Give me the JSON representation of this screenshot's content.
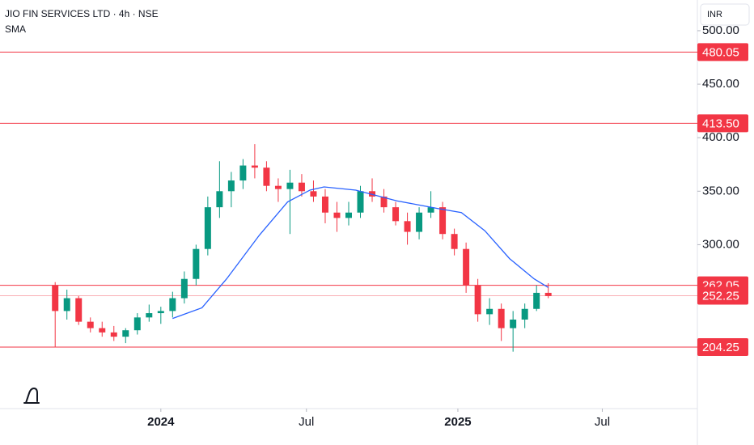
{
  "chart_data": {
    "type": "candlestick",
    "title": "JIO FIN SERVICES LTD · 4h · NSE",
    "currency": "INR",
    "x": [
      0,
      1,
      2,
      3,
      4,
      5,
      6,
      7,
      8,
      9,
      10,
      11,
      12,
      13,
      14,
      15,
      16,
      17,
      18,
      19,
      20,
      21,
      22,
      23,
      24,
      25,
      26,
      27,
      28,
      29,
      30,
      31,
      32,
      33,
      34,
      35,
      36,
      37,
      38,
      39,
      40,
      41,
      42
    ],
    "open": [
      262,
      238,
      250,
      228,
      222,
      218,
      214,
      220,
      232,
      236,
      238,
      250,
      268,
      296,
      335,
      350,
      360,
      374,
      372,
      355,
      352,
      358,
      350,
      345,
      330,
      325,
      330,
      350,
      345,
      335,
      322,
      312,
      330,
      335,
      310,
      296,
      262,
      235,
      240,
      222,
      230,
      240,
      255
    ],
    "high": [
      265,
      258,
      252,
      232,
      228,
      224,
      222,
      236,
      244,
      242,
      256,
      275,
      300,
      345,
      378,
      368,
      380,
      394,
      378,
      362,
      370,
      366,
      360,
      352,
      340,
      340,
      355,
      362,
      352,
      340,
      330,
      335,
      350,
      340,
      315,
      302,
      268,
      250,
      245,
      238,
      245,
      262,
      264
    ],
    "low": [
      204,
      230,
      225,
      218,
      214,
      210,
      208,
      216,
      228,
      226,
      232,
      245,
      262,
      290,
      325,
      335,
      352,
      362,
      350,
      340,
      310,
      345,
      340,
      320,
      312,
      318,
      325,
      340,
      330,
      318,
      300,
      305,
      325,
      305,
      290,
      255,
      228,
      225,
      210,
      200,
      222,
      238,
      250
    ],
    "close": [
      238,
      250,
      228,
      222,
      218,
      214,
      220,
      232,
      236,
      238,
      250,
      268,
      296,
      335,
      350,
      360,
      374,
      372,
      355,
      352,
      358,
      350,
      345,
      330,
      325,
      330,
      350,
      345,
      335,
      322,
      312,
      330,
      335,
      310,
      296,
      262,
      235,
      240,
      222,
      230,
      240,
      255,
      252
    ],
    "up_color": "#089981",
    "down_color": "#f23645",
    "sma": {
      "name": "SMA",
      "color": "#2962ff",
      "x": [
        10,
        12.5,
        14.6,
        17.4,
        19.8,
        21.7,
        22.9,
        25.6,
        29.1,
        32.5,
        34.6,
        36.6,
        38.7,
        40.8,
        42
      ],
      "values": [
        231,
        241,
        268,
        309,
        340,
        351,
        354,
        351,
        341,
        334,
        330,
        313,
        287,
        268,
        260
      ]
    },
    "levels": [
      480.05,
      {
        "value": 413.5,
        "label": "413.50"
      },
      262.05,
      252.25,
      204.25
    ],
    "level_color": "#f23645",
    "xlim": [
      -4.7,
      54.7
    ],
    "xticks": [
      {
        "value": 9,
        "label": "2024"
      },
      {
        "value": 21.4,
        "label": "Jul"
      },
      {
        "value": 34.3,
        "label": "2025"
      },
      {
        "value": 46.6,
        "label": "Jul"
      }
    ],
    "ylim": [
      146.8,
      528.7
    ],
    "yticks": [
      {
        "value": 300,
        "label": "300.00"
      },
      {
        "value": 350,
        "label": "350.00"
      },
      {
        "value": 400,
        "label": "400.00"
      },
      {
        "value": 450,
        "label": "450.00"
      },
      {
        "value": 500,
        "label": "500.00"
      }
    ]
  }
}
